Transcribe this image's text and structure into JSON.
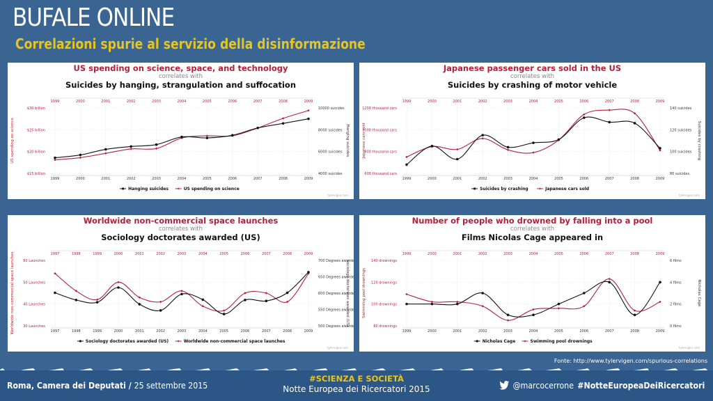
{
  "header": {
    "title": "BUFALE ONLINE",
    "subtitle": "Correlazioni spurie al servizio della disinformazione"
  },
  "source_note": "Fonte: http://www.tylervigen.com/spurious-correlations",
  "footer": {
    "left_bold": "Roma, Camera dei Deputati",
    "left_sep": " / ",
    "left_date": "25 settembre 2015",
    "center_tag": "#SCIENZA E SOCIETÀ",
    "center_event": "Notte Europea dei Ricercatori 2015",
    "twitter_handle": "@marcocerrone",
    "hashtag": "#NotteEuropeaDeiRicercatori"
  },
  "colors": {
    "red": "#b4203a",
    "black": "#111111",
    "bg": "#3a6593",
    "accent": "#e8c51a"
  },
  "icons": {
    "twitter": "twitter-bird-icon"
  },
  "chart_data": [
    {
      "type": "line",
      "title": "US spending on science, space, and technology",
      "correlates": "correlates with",
      "title2": "Suicides by hanging, strangulation and suffocation",
      "credit": "tylervigen.com",
      "x": [
        1999,
        2000,
        2001,
        2002,
        2003,
        2004,
        2005,
        2006,
        2007,
        2008,
        2009
      ],
      "left_axis": {
        "label": "US spending on science",
        "ticks": [
          "$15 billion",
          "$20 billion",
          "$25 billion",
          "$30 billion"
        ],
        "tick_values": [
          15,
          20,
          25,
          30
        ],
        "range": [
          15,
          30
        ]
      },
      "right_axis": {
        "label": "Hanging suicides",
        "ticks": [
          "4000 suicides",
          "6000 suicides",
          "8000 suicides",
          "10000 suicides"
        ],
        "tick_values": [
          4000,
          6000,
          8000,
          10000
        ],
        "range": [
          4000,
          10000
        ]
      },
      "series": [
        {
          "name": "Hanging suicides",
          "axis": "right",
          "color": "#111111",
          "values": [
            5427,
            5688,
            6198,
            6462,
            6635,
            7336,
            7248,
            7491,
            8161,
            8578,
            9000
          ]
        },
        {
          "name": "US spending on science",
          "axis": "left",
          "color": "#b4203a",
          "values": [
            18.1,
            18.6,
            19.6,
            20.6,
            20.7,
            23.1,
            23.6,
            23.6,
            25.4,
            27.6,
            29.4
          ]
        }
      ],
      "legend": [
        "Hanging suicides",
        "US spending on science"
      ]
    },
    {
      "type": "line",
      "title": "Japanese passenger cars sold in the US",
      "correlates": "correlates with",
      "title2": "Suicides by crashing of motor vehicle",
      "credit": "tylervigen.com",
      "x": [
        1999,
        2000,
        2001,
        2002,
        2003,
        2004,
        2005,
        2006,
        2007,
        2008,
        2009
      ],
      "left_axis": {
        "label": "Japanese cars sold",
        "ticks": [
          "600 thousand cars",
          "800 thousand cars",
          "1000 thousand cars",
          "1200 thousand cars"
        ],
        "tick_values": [
          600,
          800,
          1000,
          1200
        ],
        "range": [
          600,
          1200
        ]
      },
      "right_axis": {
        "label": "Suicides by crashing",
        "ticks": [
          "80 suicides",
          "100 suicides",
          "120 suicides",
          "140 suicides"
        ],
        "tick_values": [
          80,
          100,
          120,
          140
        ],
        "range": [
          80,
          140
        ]
      },
      "series": [
        {
          "name": "Suicides by crashing",
          "axis": "right",
          "color": "#111111",
          "values": [
            88,
            105,
            93,
            115,
            104,
            108,
            111,
            131,
            127,
            126,
            103
          ]
        },
        {
          "name": "Japanese cars sold",
          "axis": "left",
          "color": "#b4203a",
          "values": [
            750,
            845,
            820,
            920,
            815,
            790,
            905,
            1140,
            1180,
            1150,
            810
          ]
        }
      ],
      "legend": [
        "Suicides by crashing",
        "Japanese cars sold"
      ]
    },
    {
      "type": "line",
      "title": "Worldwide non-commercial space launches",
      "correlates": "correlates with",
      "title2": "Sociology doctorates awarded (US)",
      "credit": "tylervigen.com",
      "x": [
        1997,
        1998,
        1999,
        2000,
        2001,
        2002,
        2003,
        2004,
        2005,
        2006,
        2007,
        2008,
        2009
      ],
      "left_axis": {
        "label": "Worldwide non-commercial space launches",
        "ticks": [
          "30 Launches",
          "40 Launches",
          "50 Launches",
          "60 Launches"
        ],
        "tick_values": [
          30,
          40,
          50,
          60
        ],
        "range": [
          30,
          60
        ]
      },
      "right_axis": {
        "label": "Sociology doctorates awarded (US)",
        "ticks": [
          "500 Degrees awarded",
          "550 Degrees awarded",
          "600 Degrees awarded",
          "650 Degrees awarded",
          "700 Degrees awarded"
        ],
        "tick_values": [
          500,
          550,
          600,
          650,
          700
        ],
        "range": [
          500,
          700
        ]
      },
      "series": [
        {
          "name": "Sociology doctorates awarded (US)",
          "axis": "right",
          "color": "#111111",
          "values": [
            601,
            579,
            572,
            617,
            566,
            547,
            597,
            580,
            536,
            579,
            576,
            601,
            664
          ]
        },
        {
          "name": "Worldwide non-commercial space launches",
          "axis": "left",
          "color": "#b4203a",
          "values": [
            54,
            46,
            42,
            50,
            43,
            41,
            46,
            39,
            37,
            45,
            45,
            41,
            54
          ]
        }
      ],
      "legend": [
        "Sociology doctorates awarded (US)",
        "Worldwide non-commercial space launches"
      ]
    },
    {
      "type": "line",
      "title": "Number of people who drowned by falling into a pool",
      "correlates": "correlates with",
      "title2": "Films Nicolas Cage appeared in",
      "credit": "tylervigen.com",
      "x": [
        1999,
        2000,
        2001,
        2002,
        2003,
        2004,
        2005,
        2006,
        2007,
        2008,
        2009
      ],
      "left_axis": {
        "label": "Swimming pool drownings",
        "ticks": [
          "80 drownings",
          "100 drownings",
          "120 drownings",
          "140 drownings"
        ],
        "tick_values": [
          80,
          100,
          120,
          140
        ],
        "range": [
          80,
          140
        ]
      },
      "right_axis": {
        "label": "Nicholas Cage",
        "ticks": [
          "0 films",
          "2 films",
          "4 films",
          "6 films"
        ],
        "tick_values": [
          0,
          2,
          4,
          6
        ],
        "range": [
          0,
          6
        ]
      },
      "series": [
        {
          "name": "Nicholas Cage",
          "axis": "right",
          "color": "#111111",
          "values": [
            2,
            2,
            2,
            3,
            1,
            1,
            2,
            3,
            4,
            1,
            4
          ]
        },
        {
          "name": "Swimming pool drownings",
          "axis": "left",
          "color": "#b4203a",
          "values": [
            109,
            102,
            102,
            98,
            85,
            95,
            96,
            98,
            123,
            94,
            102
          ]
        }
      ],
      "legend": [
        "Nicholas Cage",
        "Swimming pool drownings"
      ]
    }
  ]
}
